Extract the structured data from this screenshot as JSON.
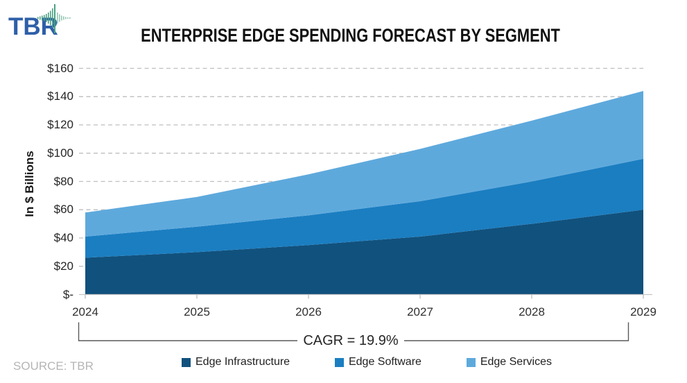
{
  "logo": {
    "text": "TBR",
    "brand_blue": "#2E5FA8",
    "brand_green": "#4AA183"
  },
  "source": "SOURCE: TBR",
  "chart_data": {
    "type": "area",
    "stacked": true,
    "title": "ENTERPRISE EDGE SPENDING FORECAST BY SEGMENT",
    "x": [
      "2024",
      "2025",
      "2026",
      "2027",
      "2028",
      "2029"
    ],
    "series": [
      {
        "name": "Edge Infrastructure",
        "color": "#11517D",
        "values": [
          26,
          30,
          35,
          41,
          50,
          60
        ]
      },
      {
        "name": "Edge Software",
        "color": "#1B7EC1",
        "values": [
          15,
          18,
          21,
          25,
          30,
          36
        ]
      },
      {
        "name": "Edge Services",
        "color": "#5EA9DC",
        "values": [
          17,
          21,
          29,
          37,
          43,
          48
        ]
      }
    ],
    "totals": [
      58,
      69,
      85,
      103,
      123,
      144
    ],
    "xlabel": "",
    "ylabel": "In $ Billions",
    "ylim": [
      0,
      160
    ],
    "ytick_step": 20,
    "ytick_labels": [
      "$-",
      "$20",
      "$40",
      "$60",
      "$80",
      "$100",
      "$120",
      "$140",
      "$160"
    ],
    "grid": "horizontal dashed",
    "legend_position": "bottom",
    "annotation": "CAGR = 19.9%",
    "annotation_span_years": [
      "2024",
      "2029"
    ]
  }
}
